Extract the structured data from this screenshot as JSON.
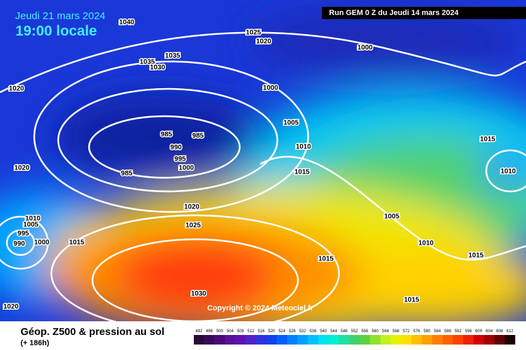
{
  "header": {
    "date": "Jeudi 21 mars 2024",
    "time": "19:00 locale",
    "run": "Run GEM 0 Z du Jeudi 14 mars 2024"
  },
  "isobars": [
    "1040",
    "1025",
    "1020",
    "1000",
    "1035",
    "1035",
    "1030",
    "1020",
    "1000",
    "1005",
    "985",
    "985",
    "990",
    "1010",
    "995",
    "1000",
    "1020",
    "985",
    "1015",
    "1015",
    "1010",
    "1020",
    "1010",
    "1005",
    "1025",
    "995",
    "990",
    "1000",
    "1015",
    "1005",
    "1010",
    "1015",
    "1015",
    "1030",
    "1015",
    "1020"
  ],
  "copyright": "Copyright © 2024 Meteociel.fr",
  "footer": {
    "title": "Géop. Z500 & pression au sol",
    "lead": "(+ 186h)"
  },
  "scale": {
    "labels": [
      492,
      496,
      500,
      504,
      508,
      512,
      516,
      520,
      524,
      528,
      532,
      536,
      540,
      544,
      548,
      552,
      556,
      560,
      564,
      568,
      572,
      576,
      580,
      584,
      588,
      592,
      596,
      600,
      604,
      608,
      612
    ],
    "colors": [
      "#2a0a3a",
      "#3a0a5a",
      "#4a0a7a",
      "#5a109a",
      "#6010b0",
      "#5020c8",
      "#3030e0",
      "#1040f0",
      "#0060ff",
      "#0080ff",
      "#00a0ff",
      "#00c0ff",
      "#00e0f0",
      "#00f0d0",
      "#20e0a0",
      "#40d070",
      "#60d040",
      "#90e030",
      "#c0f020",
      "#e8f000",
      "#ffe000",
      "#ffc000",
      "#ffa000",
      "#ff8000",
      "#ff6000",
      "#ff4000",
      "#f02000",
      "#d00000",
      "#a00000",
      "#600000",
      "#200000"
    ]
  }
}
